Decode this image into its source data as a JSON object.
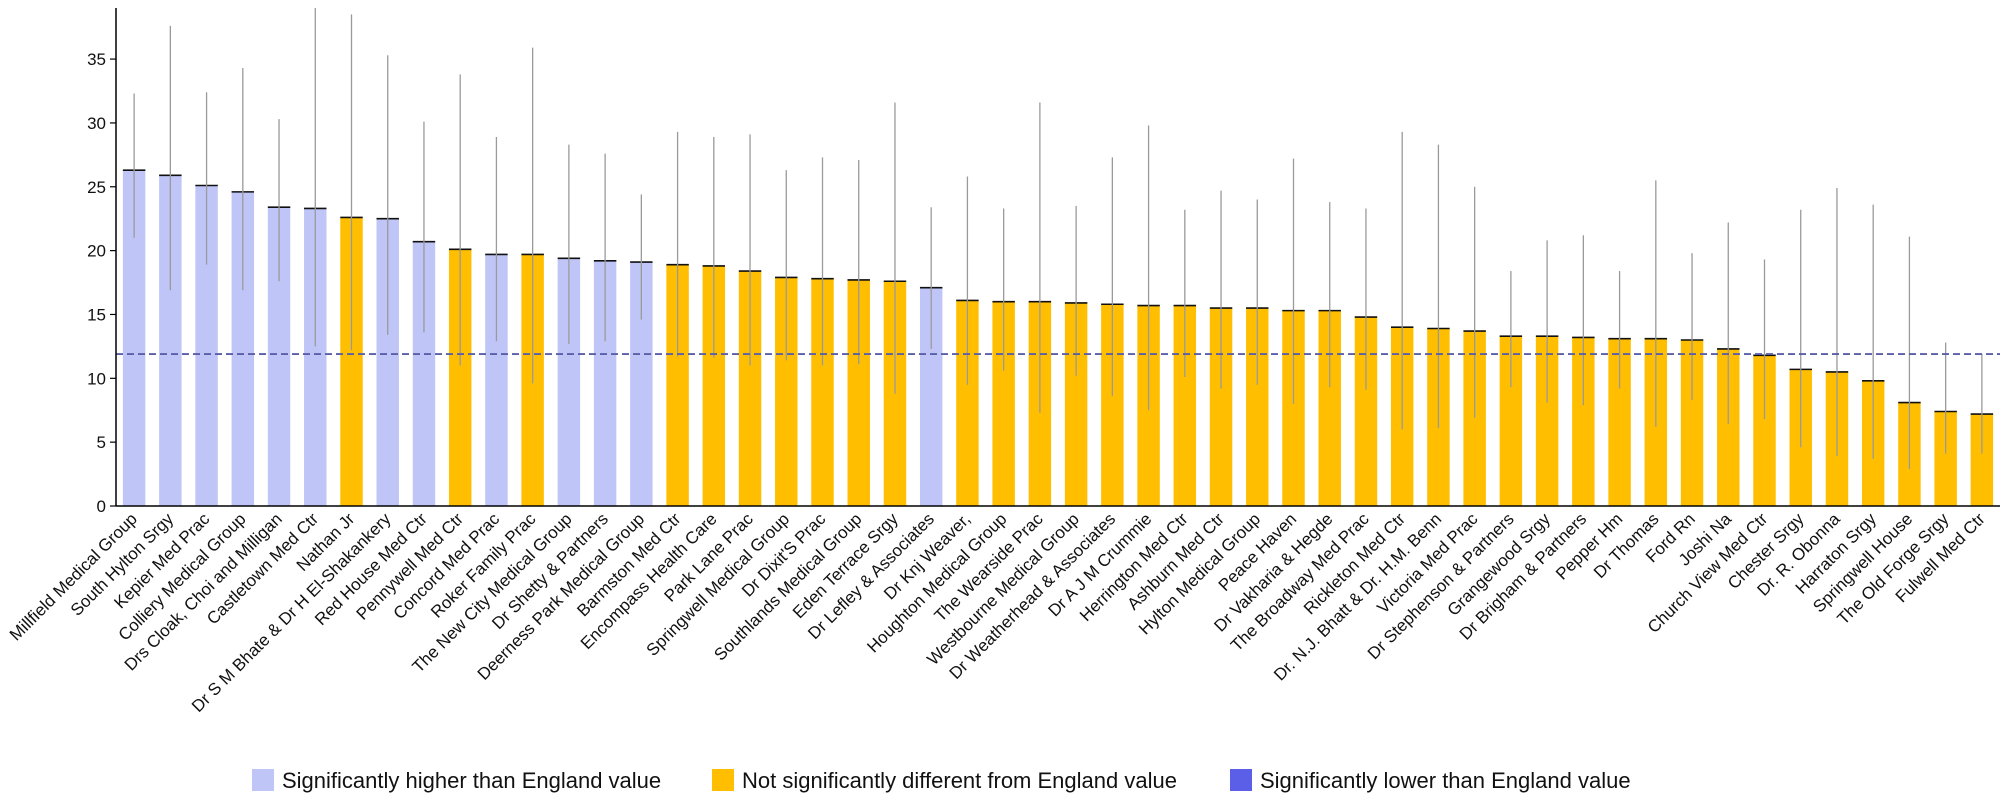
{
  "chart_data": {
    "type": "bar",
    "title": "",
    "xlabel": "",
    "ylabel": "",
    "ylim": [
      0,
      39
    ],
    "yticks": [
      0,
      5,
      10,
      15,
      20,
      25,
      30,
      35
    ],
    "grid": false,
    "reference_line": {
      "value": 11.9,
      "style": "dashed",
      "color": "#5b5fa8"
    },
    "legend_position": "bottom",
    "colors": {
      "higher": "#bfc6f7",
      "not_different": "#ffbf00",
      "lower": "#5b5ee6"
    },
    "legend": [
      {
        "key": "higher",
        "label": "Significantly higher than England value"
      },
      {
        "key": "not_different",
        "label": "Not significantly different from England value"
      },
      {
        "key": "lower",
        "label": "Significantly lower than England value"
      }
    ],
    "bars": [
      {
        "label": "Millfield Medical Group",
        "value": 26.3,
        "low": 21.0,
        "high": 32.3,
        "sig": "higher"
      },
      {
        "label": "South Hylton Srgy",
        "value": 25.9,
        "low": 16.9,
        "high": 37.6,
        "sig": "higher"
      },
      {
        "label": "Kepier Med Prac",
        "value": 25.1,
        "low": 18.9,
        "high": 32.4,
        "sig": "higher"
      },
      {
        "label": "Colliery Medical Group",
        "value": 24.6,
        "low": 16.9,
        "high": 34.3,
        "sig": "higher"
      },
      {
        "label": "Drs Cloak, Choi and Milligan",
        "value": 23.4,
        "low": 17.6,
        "high": 30.3,
        "sig": "higher"
      },
      {
        "label": "Castletown Med Ctr",
        "value": 23.3,
        "low": 12.5,
        "high": 39.0,
        "sig": "higher"
      },
      {
        "label": "Nathan Jr",
        "value": 22.6,
        "low": 12.2,
        "high": 38.5,
        "sig": "not_different"
      },
      {
        "label": "Dr S M Bhate & Dr H El-Shakankery",
        "value": 22.5,
        "low": 13.4,
        "high": 35.3,
        "sig": "higher"
      },
      {
        "label": "Red House Med Ctr",
        "value": 20.7,
        "low": 13.6,
        "high": 30.1,
        "sig": "higher"
      },
      {
        "label": "Pennywell Med Ctr",
        "value": 20.1,
        "low": 11.0,
        "high": 33.8,
        "sig": "not_different"
      },
      {
        "label": "Concord Med Prac",
        "value": 19.7,
        "low": 12.9,
        "high": 28.9,
        "sig": "higher"
      },
      {
        "label": "Roker Family Prac",
        "value": 19.7,
        "low": 9.6,
        "high": 35.9,
        "sig": "not_different"
      },
      {
        "label": "The New City Medical Group",
        "value": 19.4,
        "low": 12.7,
        "high": 28.3,
        "sig": "higher"
      },
      {
        "label": "Dr Shetty & Partners",
        "value": 19.2,
        "low": 12.9,
        "high": 27.6,
        "sig": "higher"
      },
      {
        "label": "Deerness Park Medical Group",
        "value": 19.1,
        "low": 14.6,
        "high": 24.4,
        "sig": "higher"
      },
      {
        "label": "Barmston Med Ctr",
        "value": 18.9,
        "low": 11.7,
        "high": 29.3,
        "sig": "not_different"
      },
      {
        "label": "Encompass Health Care",
        "value": 18.8,
        "low": 11.6,
        "high": 28.9,
        "sig": "not_different"
      },
      {
        "label": "Park Lane Prac",
        "value": 18.4,
        "low": 11.0,
        "high": 29.1,
        "sig": "not_different"
      },
      {
        "label": "Springwell Medical Group",
        "value": 17.9,
        "low": 11.4,
        "high": 26.3,
        "sig": "not_different"
      },
      {
        "label": "Dr Dixit'S Prac",
        "value": 17.8,
        "low": 11.0,
        "high": 27.3,
        "sig": "not_different"
      },
      {
        "label": "Southlands Medical Group",
        "value": 17.7,
        "low": 11.1,
        "high": 27.1,
        "sig": "not_different"
      },
      {
        "label": "Eden Terrace Srgy",
        "value": 17.6,
        "low": 8.8,
        "high": 31.6,
        "sig": "not_different"
      },
      {
        "label": "Dr Lefley & Associates",
        "value": 17.1,
        "low": 12.3,
        "high": 23.4,
        "sig": "higher"
      },
      {
        "label": "Dr Knj Weaver,",
        "value": 16.1,
        "low": 9.5,
        "high": 25.8,
        "sig": "not_different"
      },
      {
        "label": "Houghton Medical Group",
        "value": 16.0,
        "low": 10.6,
        "high": 23.3,
        "sig": "not_different"
      },
      {
        "label": "The Wearside Prac",
        "value": 16.0,
        "low": 7.3,
        "high": 31.6,
        "sig": "not_different"
      },
      {
        "label": "Westbourne Medical Group",
        "value": 15.9,
        "low": 10.2,
        "high": 23.5,
        "sig": "not_different"
      },
      {
        "label": "Dr Weatherhead & Associates",
        "value": 15.8,
        "low": 8.6,
        "high": 27.3,
        "sig": "not_different"
      },
      {
        "label": "Dr A J M Crummie",
        "value": 15.7,
        "low": 7.5,
        "high": 29.8,
        "sig": "not_different"
      },
      {
        "label": "Herrington Med Ctr",
        "value": 15.7,
        "low": 10.1,
        "high": 23.2,
        "sig": "not_different"
      },
      {
        "label": "Ashburn Med Ctr",
        "value": 15.5,
        "low": 9.2,
        "high": 24.7,
        "sig": "not_different"
      },
      {
        "label": "Hylton Medical Group",
        "value": 15.5,
        "low": 9.5,
        "high": 24.0,
        "sig": "not_different"
      },
      {
        "label": "Peace Haven",
        "value": 15.3,
        "low": 8.0,
        "high": 27.2,
        "sig": "not_different"
      },
      {
        "label": "Dr Vakharia & Hegde",
        "value": 15.3,
        "low": 9.3,
        "high": 23.8,
        "sig": "not_different"
      },
      {
        "label": "The Broadway Med Prac",
        "value": 14.8,
        "low": 9.1,
        "high": 23.3,
        "sig": "not_different"
      },
      {
        "label": "Rickleton Med Ctr",
        "value": 14.0,
        "low": 6.0,
        "high": 29.3,
        "sig": "not_different"
      },
      {
        "label": "Dr. N.J. Bhatt & Dr. H.M. Benn",
        "value": 13.9,
        "low": 6.1,
        "high": 28.3,
        "sig": "not_different"
      },
      {
        "label": "Victoria Med Prac",
        "value": 13.7,
        "low": 6.9,
        "high": 25.0,
        "sig": "not_different"
      },
      {
        "label": "Dr Stephenson & Partners",
        "value": 13.3,
        "low": 9.3,
        "high": 18.4,
        "sig": "not_different"
      },
      {
        "label": "Grangewood Srgy",
        "value": 13.3,
        "low": 8.1,
        "high": 20.8,
        "sig": "not_different"
      },
      {
        "label": "Dr Brigham & Partners",
        "value": 13.2,
        "low": 7.9,
        "high": 21.2,
        "sig": "not_different"
      },
      {
        "label": "Pepper Hm",
        "value": 13.1,
        "low": 9.2,
        "high": 18.4,
        "sig": "not_different"
      },
      {
        "label": "Dr Thomas",
        "value": 13.1,
        "low": 6.2,
        "high": 25.5,
        "sig": "not_different"
      },
      {
        "label": "Ford Rn",
        "value": 13.0,
        "low": 8.3,
        "high": 19.8,
        "sig": "not_different"
      },
      {
        "label": "Joshi Na",
        "value": 12.3,
        "low": 6.4,
        "high": 22.2,
        "sig": "not_different"
      },
      {
        "label": "Church View Med Ctr",
        "value": 11.8,
        "low": 6.8,
        "high": 19.3,
        "sig": "not_different"
      },
      {
        "label": "Chester Srgy",
        "value": 10.7,
        "low": 4.6,
        "high": 23.2,
        "sig": "not_different"
      },
      {
        "label": "Dr. R. Obonna",
        "value": 10.5,
        "low": 3.9,
        "high": 24.9,
        "sig": "not_different"
      },
      {
        "label": "Harraton Srgy",
        "value": 9.8,
        "low": 3.7,
        "high": 23.6,
        "sig": "not_different"
      },
      {
        "label": "Springwell House",
        "value": 8.1,
        "low": 2.9,
        "high": 21.1,
        "sig": "not_different"
      },
      {
        "label": "The Old Forge Srgy",
        "value": 7.4,
        "low": 4.1,
        "high": 12.8,
        "sig": "not_different"
      },
      {
        "label": "Fulwell Med Ctr",
        "value": 7.2,
        "low": 4.1,
        "high": 11.9,
        "sig": "not_different"
      }
    ]
  }
}
